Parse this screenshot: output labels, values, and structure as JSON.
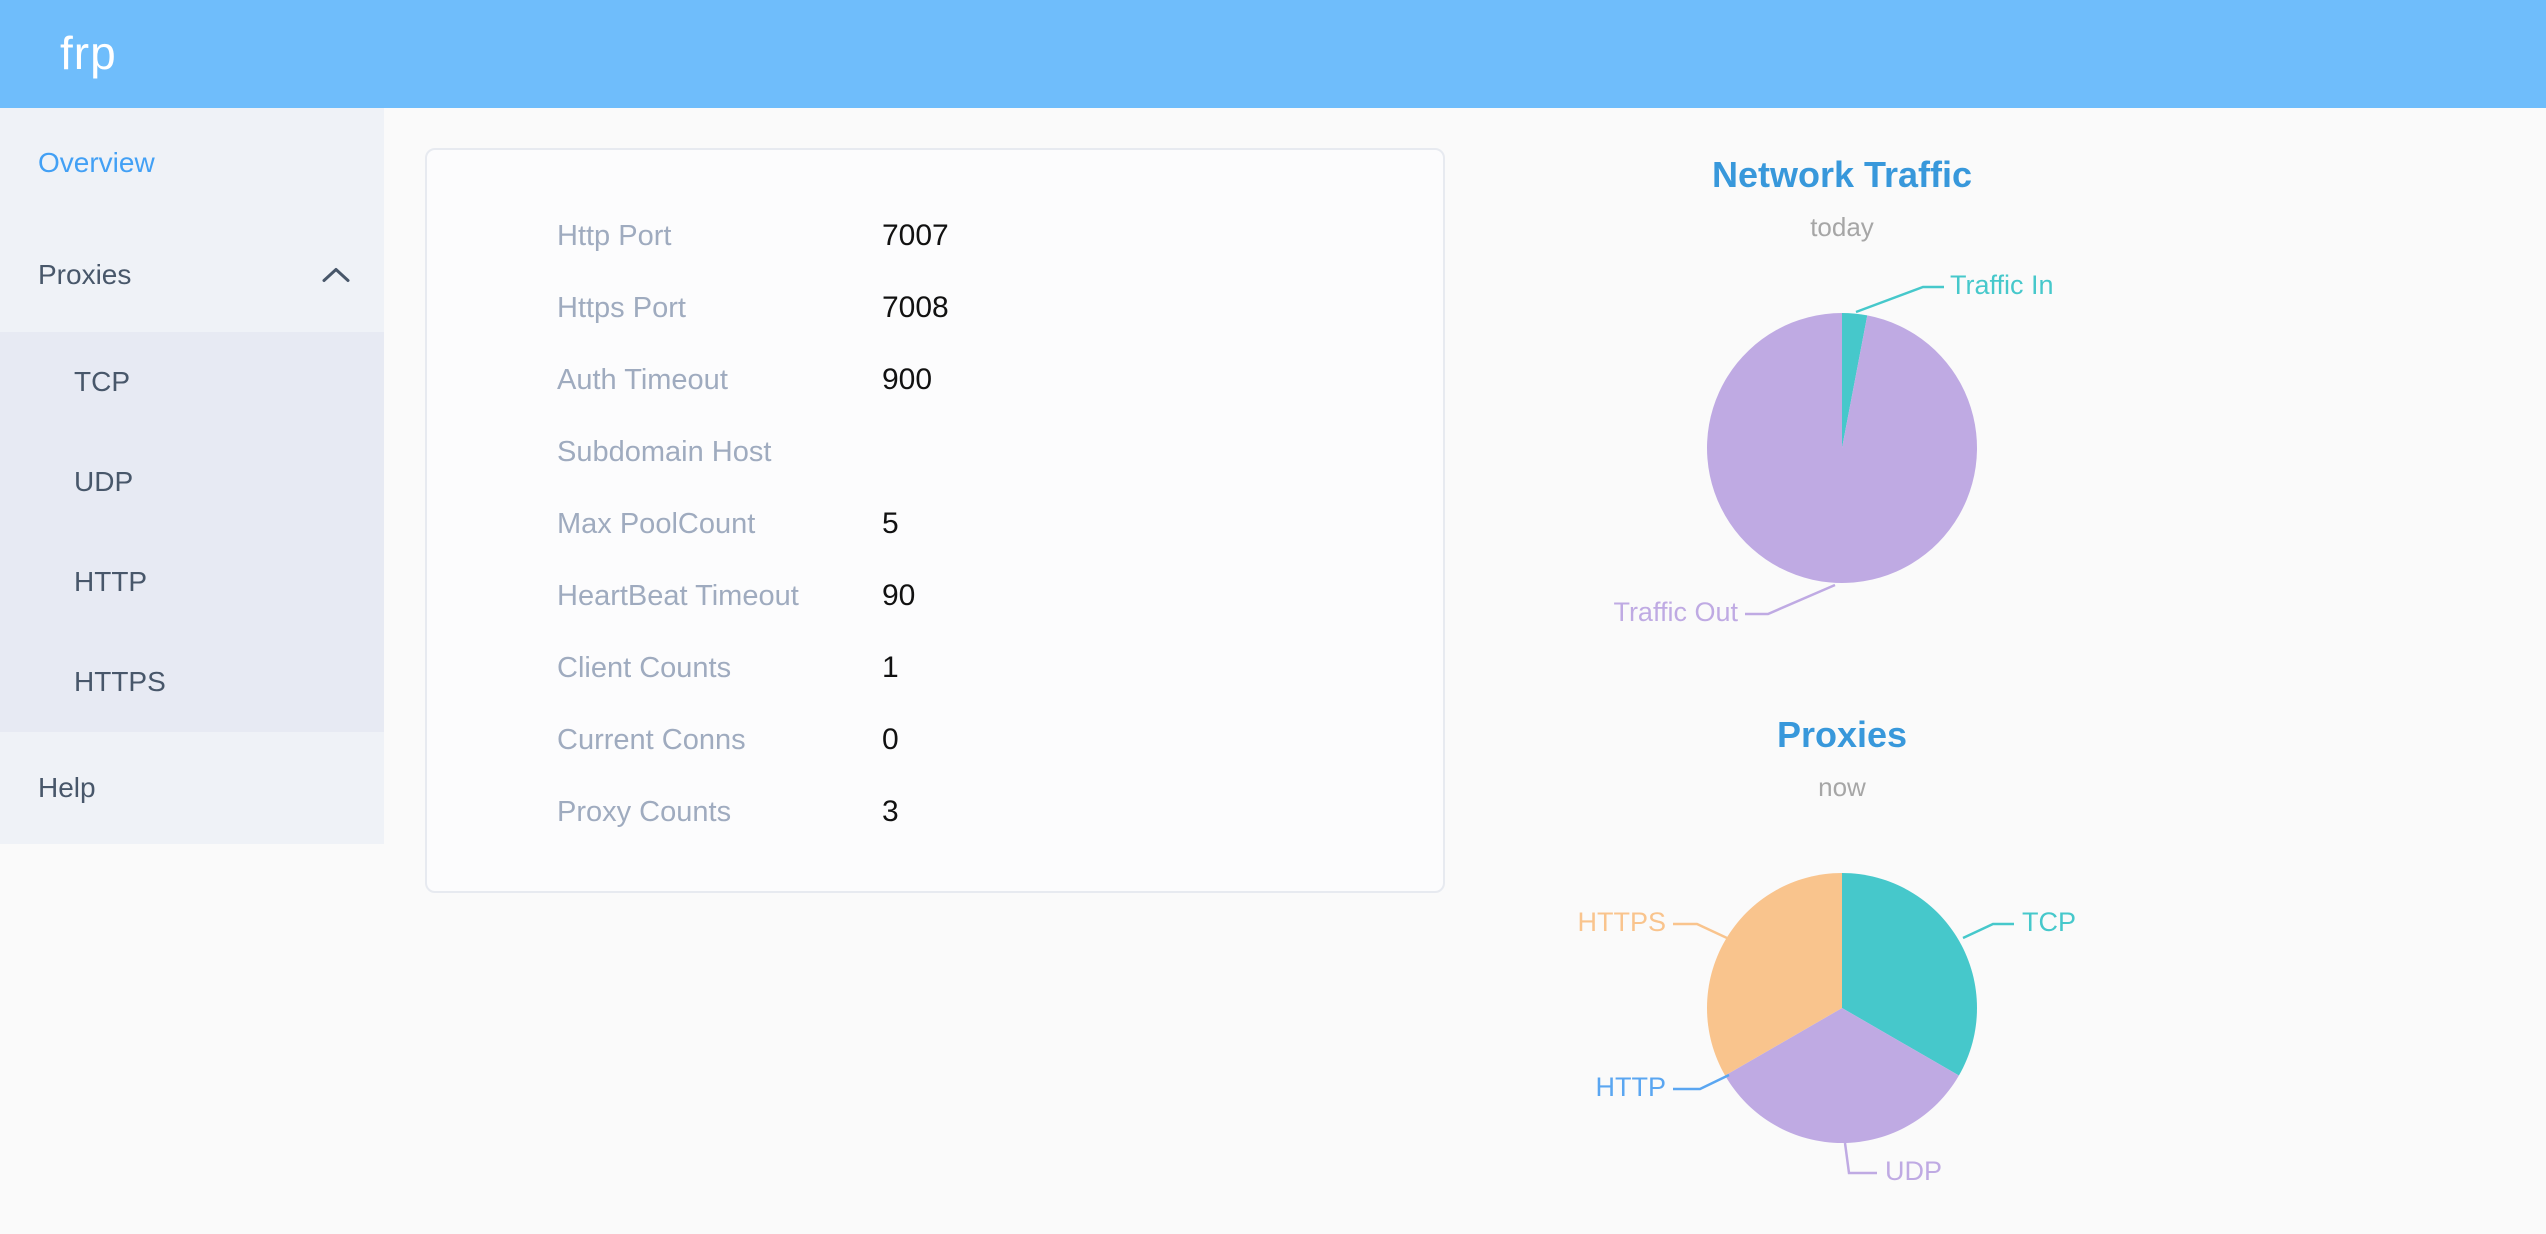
{
  "header": {
    "logo": "frp"
  },
  "sidebar": {
    "items": [
      {
        "label": "Overview",
        "active": true
      },
      {
        "label": "Proxies",
        "expanded": true,
        "children": [
          {
            "label": "TCP"
          },
          {
            "label": "UDP"
          },
          {
            "label": "HTTP"
          },
          {
            "label": "HTTPS"
          }
        ]
      },
      {
        "label": "Help"
      }
    ]
  },
  "server_info": {
    "rows": [
      {
        "label": "Http Port",
        "value": "7007"
      },
      {
        "label": "Https Port",
        "value": "7008"
      },
      {
        "label": "Auth Timeout",
        "value": "900"
      },
      {
        "label": "Subdomain Host",
        "value": ""
      },
      {
        "label": "Max PoolCount",
        "value": "5"
      },
      {
        "label": "HeartBeat Timeout",
        "value": "90"
      },
      {
        "label": "Client Counts",
        "value": "1"
      },
      {
        "label": "Current Conns",
        "value": "0"
      },
      {
        "label": "Proxy Counts",
        "value": "3"
      }
    ]
  },
  "chart_data": [
    {
      "type": "pie",
      "title": "Network Traffic",
      "subtitle": "today",
      "legend": false,
      "labels": "callout",
      "value_basis": "share estimated from arc angles (%)",
      "slices": [
        {
          "name": "Traffic In",
          "value": 3,
          "color": "#46c8cb"
        },
        {
          "name": "Traffic Out",
          "value": 97,
          "color": "#bfaae3"
        }
      ]
    },
    {
      "type": "pie",
      "title": "Proxies",
      "subtitle": "now",
      "legend": false,
      "labels": "callout",
      "value_basis": "proxy count (total matches Proxy Counts = 3)",
      "slices": [
        {
          "name": "TCP",
          "value": 1,
          "color": "#46c8cb"
        },
        {
          "name": "UDP",
          "value": 1,
          "color": "#bfaae3"
        },
        {
          "name": "HTTP",
          "value": 0,
          "color": "#5aa6f1"
        },
        {
          "name": "HTTPS",
          "value": 1,
          "color": "#f9c48d"
        }
      ]
    }
  ],
  "colors": {
    "header_bg": "#6fbdfb",
    "sidebar_bg": "#eff2f7",
    "submenu_bg": "#e7eaf3",
    "menu_text": "#48576a",
    "menu_active": "#42a0f5",
    "chart_title": "#3898db",
    "table_label": "#9fabbf"
  }
}
